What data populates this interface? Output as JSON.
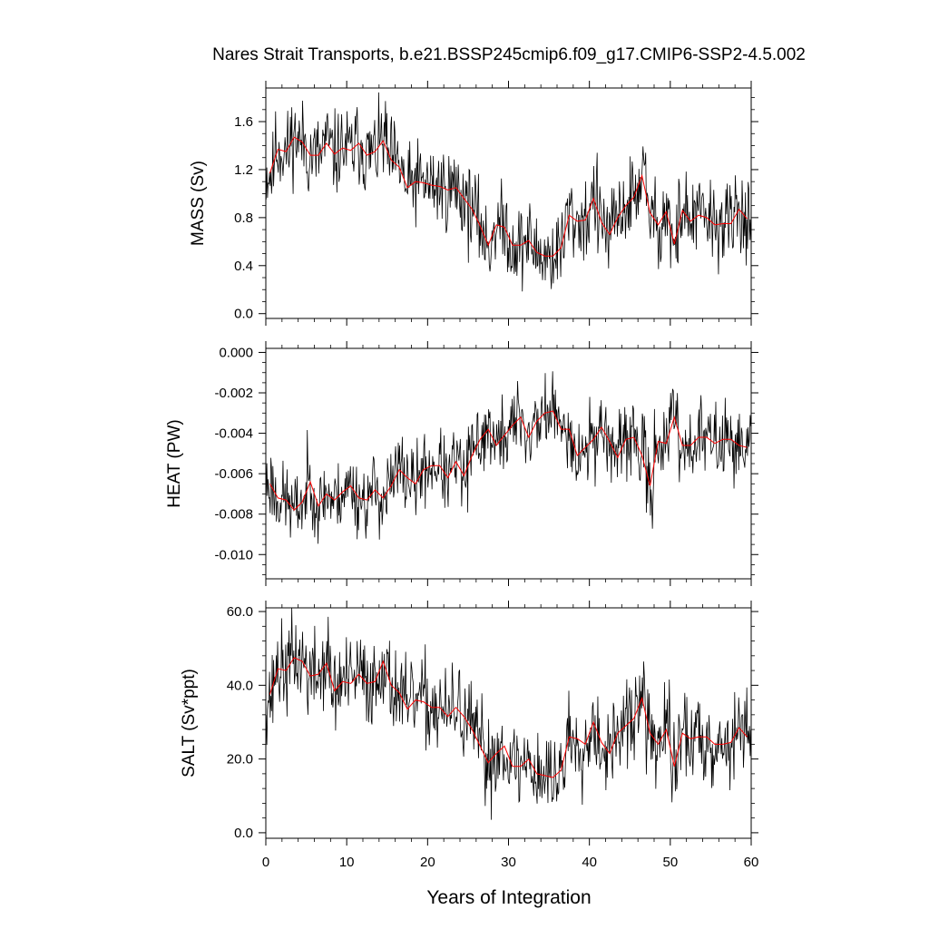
{
  "title": "Nares Strait Transports, b.e21.BSSP245cmip6.f09_g17.CMIP6-SSP2-4.5.002",
  "xlabel": "Years of Integration",
  "colors": {
    "monthly": "#000000",
    "annual": "#ff0000",
    "frame": "#000000"
  },
  "chart_data": [
    {
      "type": "line",
      "ylabel": "MASS (Sv)",
      "xlim": [
        0,
        60
      ],
      "ylim": [
        -0.04,
        1.88
      ],
      "x_ticks": [
        0,
        10,
        20,
        30,
        40,
        50,
        60
      ],
      "x_tick_labels": [
        "0",
        "10",
        "20",
        "30",
        "40",
        "50",
        "60"
      ],
      "y_ticks": [
        0.0,
        0.4,
        0.8,
        1.2,
        1.6
      ],
      "y_tick_labels": [
        "0.0",
        "0.4",
        "0.8",
        "1.2",
        "1.6"
      ],
      "y_minor_step": 0.1,
      "grid": false,
      "annual_years": [
        0.5,
        1.5,
        2.5,
        3.5,
        4.5,
        5.5,
        6.5,
        7.5,
        8.5,
        9.5,
        10.5,
        11.5,
        12.5,
        13.5,
        14.5,
        15.5,
        16.5,
        17.5,
        18.5,
        19.5,
        20.5,
        21.5,
        22.5,
        23.5,
        24.5,
        25.5,
        26.5,
        27.5,
        28.5,
        29.5,
        30.5,
        31.5,
        32.5,
        33.5,
        34.5,
        35.5,
        36.5,
        37.5,
        38.5,
        39.5,
        40.5,
        41.5,
        42.5,
        43.5,
        44.5,
        45.5,
        46.5,
        47.5,
        48.5,
        49.5,
        50.5,
        51.5,
        52.5,
        53.5,
        54.5,
        55.5,
        56.5,
        57.5,
        58.5,
        59.5
      ],
      "series": [
        {
          "role": "monthly",
          "values": []
        },
        {
          "role": "annual",
          "values": [
            1.17,
            1.37,
            1.35,
            1.47,
            1.43,
            1.32,
            1.32,
            1.42,
            1.33,
            1.38,
            1.36,
            1.42,
            1.32,
            1.35,
            1.44,
            1.28,
            1.22,
            1.05,
            1.1,
            1.09,
            1.07,
            1.06,
            1.03,
            1.05,
            0.96,
            0.87,
            0.73,
            0.57,
            0.74,
            0.72,
            0.57,
            0.57,
            0.61,
            0.51,
            0.48,
            0.48,
            0.55,
            0.82,
            0.77,
            0.78,
            0.96,
            0.76,
            0.66,
            0.8,
            0.9,
            0.97,
            1.15,
            0.84,
            0.74,
            0.85,
            0.58,
            0.86,
            0.77,
            0.82,
            0.8,
            0.74,
            0.75,
            0.75,
            0.87,
            0.79
          ]
        }
      ]
    },
    {
      "type": "line",
      "ylabel": "HEAT (PW)",
      "xlim": [
        0,
        60
      ],
      "ylim": [
        -0.0112,
        0.0002
      ],
      "x_ticks": [
        0,
        10,
        20,
        30,
        40,
        50,
        60
      ],
      "x_tick_labels": [
        "0",
        "10",
        "20",
        "30",
        "40",
        "50",
        "60"
      ],
      "y_ticks": [
        -0.01,
        -0.008,
        -0.006,
        -0.004,
        -0.002,
        0.0
      ],
      "y_tick_labels": [
        "-0.010",
        "-0.008",
        "-0.006",
        "-0.004",
        "-0.002",
        "0.000"
      ],
      "y_minor_step": 0.0005,
      "grid": false,
      "annual_years": [
        0.5,
        1.5,
        2.5,
        3.5,
        4.5,
        5.5,
        6.5,
        7.5,
        8.5,
        9.5,
        10.5,
        11.5,
        12.5,
        13.5,
        14.5,
        15.5,
        16.5,
        17.5,
        18.5,
        19.5,
        20.5,
        21.5,
        22.5,
        23.5,
        24.5,
        25.5,
        26.5,
        27.5,
        28.5,
        29.5,
        30.5,
        31.5,
        32.5,
        33.5,
        34.5,
        35.5,
        36.5,
        37.5,
        38.5,
        39.5,
        40.5,
        41.5,
        42.5,
        43.5,
        44.5,
        45.5,
        46.5,
        47.5,
        48.5,
        49.5,
        50.5,
        51.5,
        52.5,
        53.5,
        54.5,
        55.5,
        56.5,
        57.5,
        58.5,
        59.5
      ],
      "series": [
        {
          "role": "monthly",
          "values": []
        },
        {
          "role": "annual",
          "values": [
            -0.0065,
            -0.0072,
            -0.0073,
            -0.0078,
            -0.0074,
            -0.0064,
            -0.0076,
            -0.007,
            -0.0073,
            -0.0069,
            -0.0066,
            -0.0072,
            -0.0073,
            -0.0068,
            -0.0072,
            -0.0066,
            -0.0058,
            -0.0062,
            -0.0065,
            -0.0058,
            -0.0056,
            -0.0056,
            -0.0062,
            -0.0054,
            -0.0061,
            -0.0051,
            -0.0043,
            -0.0038,
            -0.0046,
            -0.0041,
            -0.0036,
            -0.0032,
            -0.0042,
            -0.0034,
            -0.003,
            -0.0029,
            -0.0038,
            -0.0038,
            -0.0051,
            -0.0047,
            -0.0043,
            -0.0037,
            -0.0044,
            -0.0052,
            -0.0043,
            -0.0042,
            -0.0051,
            -0.0066,
            -0.0044,
            -0.0045,
            -0.0032,
            -0.0046,
            -0.0046,
            -0.0042,
            -0.0042,
            -0.0045,
            -0.0043,
            -0.0043,
            -0.0046,
            -0.0047
          ]
        }
      ]
    },
    {
      "type": "line",
      "ylabel": "SALT (Sv*ppt)",
      "xlim": [
        0,
        60
      ],
      "ylim": [
        -1.5,
        61.0
      ],
      "x_ticks": [
        0,
        10,
        20,
        30,
        40,
        50,
        60
      ],
      "x_tick_labels": [
        "0",
        "10",
        "20",
        "30",
        "40",
        "50",
        "60"
      ],
      "y_ticks": [
        0.0,
        20.0,
        40.0,
        60.0
      ],
      "y_tick_labels": [
        "0.0",
        "20.0",
        "40.0",
        "60.0"
      ],
      "y_minor_step": 4.0,
      "grid": false,
      "annual_years": [
        0.5,
        1.5,
        2.5,
        3.5,
        4.5,
        5.5,
        6.5,
        7.5,
        8.5,
        9.5,
        10.5,
        11.5,
        12.5,
        13.5,
        14.5,
        15.5,
        16.5,
        17.5,
        18.5,
        19.5,
        20.5,
        21.5,
        22.5,
        23.5,
        24.5,
        25.5,
        26.5,
        27.5,
        28.5,
        29.5,
        30.5,
        31.5,
        32.5,
        33.5,
        34.5,
        35.5,
        36.5,
        37.5,
        38.5,
        39.5,
        40.5,
        41.5,
        42.5,
        43.5,
        44.5,
        45.5,
        46.5,
        47.5,
        48.5,
        49.5,
        50.5,
        51.5,
        52.5,
        53.5,
        54.5,
        55.5,
        56.5,
        57.5,
        58.5,
        59.5
      ],
      "series": [
        {
          "role": "monthly",
          "values": []
        },
        {
          "role": "annual",
          "values": [
            37.5,
            44.5,
            44.0,
            47.5,
            46.5,
            42.5,
            43.0,
            46.0,
            38.5,
            41.0,
            40.5,
            43.0,
            40.5,
            41.0,
            46.5,
            40.0,
            38.0,
            33.5,
            36.0,
            35.5,
            34.0,
            34.0,
            31.5,
            34.0,
            31.5,
            28.0,
            23.5,
            19.0,
            21.5,
            23.5,
            18.0,
            18.0,
            20.0,
            16.0,
            15.5,
            15.0,
            17.0,
            26.0,
            25.5,
            24.0,
            30.0,
            24.5,
            21.5,
            27.0,
            29.0,
            31.0,
            36.5,
            27.0,
            24.0,
            28.0,
            18.0,
            27.0,
            25.5,
            26.0,
            26.0,
            24.0,
            24.0,
            24.5,
            28.5,
            26.0
          ]
        }
      ]
    }
  ]
}
